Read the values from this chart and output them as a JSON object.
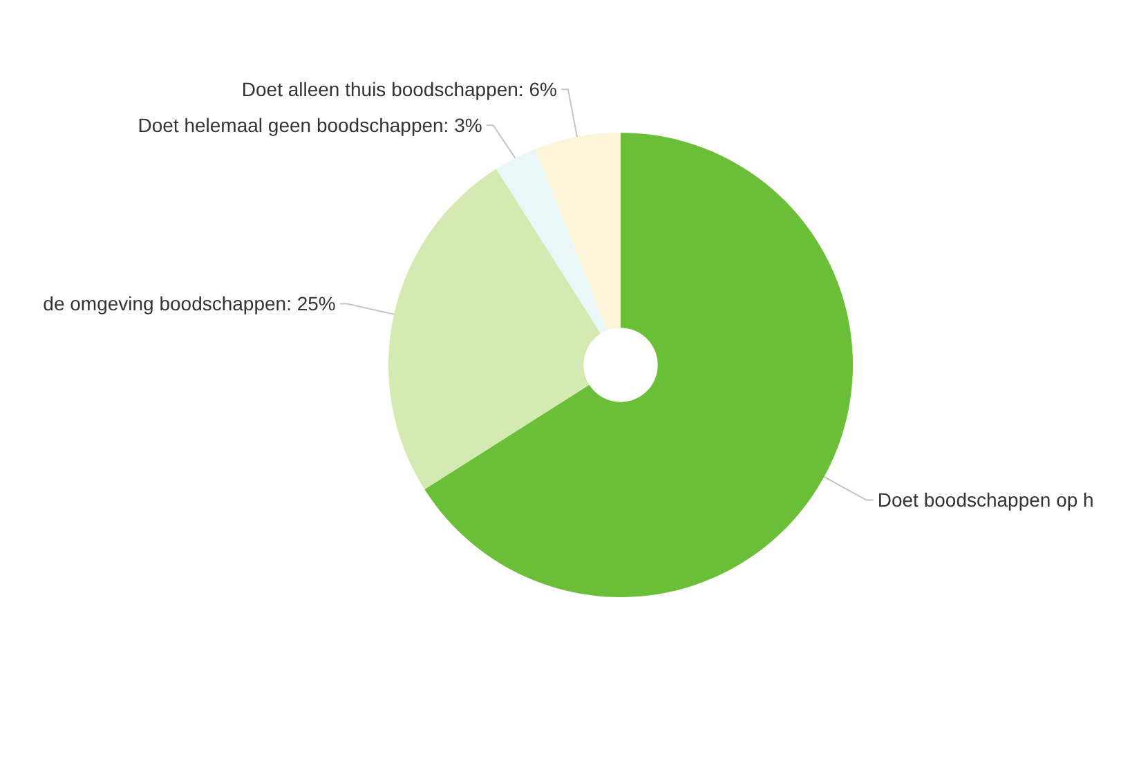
{
  "chart_data": {
    "type": "donut",
    "categories": [
      "Doet boodschappen op h",
      "de omgeving boodschappen: 25%",
      "Doet helemaal geen boodschappen: 3%",
      "Doet alleen thuis boodschappen: 6%"
    ],
    "values": [
      66,
      25,
      3,
      6
    ],
    "colors": [
      "#6bbf38",
      "#d3ebb0",
      "#e9f7fb",
      "#fdf5d9"
    ]
  }
}
